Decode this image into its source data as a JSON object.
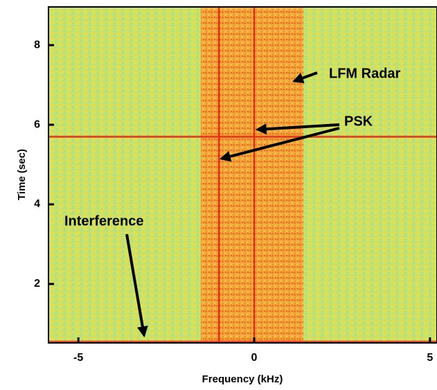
{
  "chart_data": {
    "type": "spectrogram",
    "x_label": "Frequency (kHz)",
    "y_label": "Time (sec)",
    "xlim": [
      -5.85,
      5.2
    ],
    "xticks": [
      -5,
      0,
      5
    ],
    "ylim": [
      0.52,
      8.96
    ],
    "yticks": [
      2,
      4,
      6,
      8
    ],
    "signal_band": [
      -1.52,
      1.4
    ],
    "psk_frequencies": [
      0,
      -1
    ],
    "interference_times": [
      0.55,
      5.7
    ],
    "background_color": "#c9e36a",
    "band_color": "#f2a83a",
    "line_color": "#e0301a",
    "annotations": [
      "LFM Radar",
      "PSK",
      "Interference"
    ]
  }
}
